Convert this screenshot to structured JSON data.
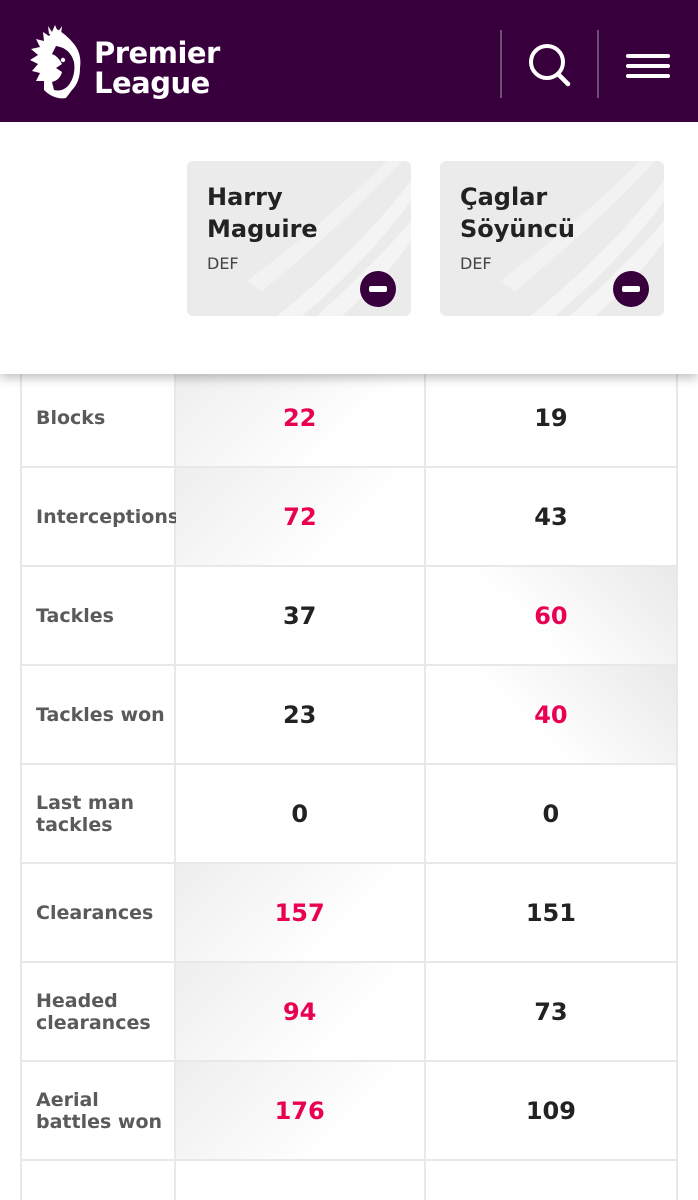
{
  "header": {
    "brand_line1": "Premier",
    "brand_line2": "League"
  },
  "players": [
    {
      "first": "Harry",
      "last": "Maguire",
      "position": "DEF"
    },
    {
      "first": "Çaglar",
      "last": "Söyüncü",
      "position": "DEF"
    }
  ],
  "stats": [
    {
      "label": "Blocks",
      "p1": "22",
      "p2": "19",
      "winner": 1
    },
    {
      "label": "Interceptions",
      "p1": "72",
      "p2": "43",
      "winner": 1
    },
    {
      "label": "Tackles",
      "p1": "37",
      "p2": "60",
      "winner": 2
    },
    {
      "label": "Tackles won",
      "p1": "23",
      "p2": "40",
      "winner": 2
    },
    {
      "label": "Last man tackles",
      "p1": "0",
      "p2": "0",
      "winner": 0
    },
    {
      "label": "Clearances",
      "p1": "157",
      "p2": "151",
      "winner": 1
    },
    {
      "label": "Headed clearances",
      "p1": "94",
      "p2": "73",
      "winner": 1
    },
    {
      "label": "Aerial battles won",
      "p1": "176",
      "p2": "109",
      "winner": 1
    }
  ],
  "colors": {
    "brand_purple": "#37003c",
    "highlight": "#e90052"
  }
}
